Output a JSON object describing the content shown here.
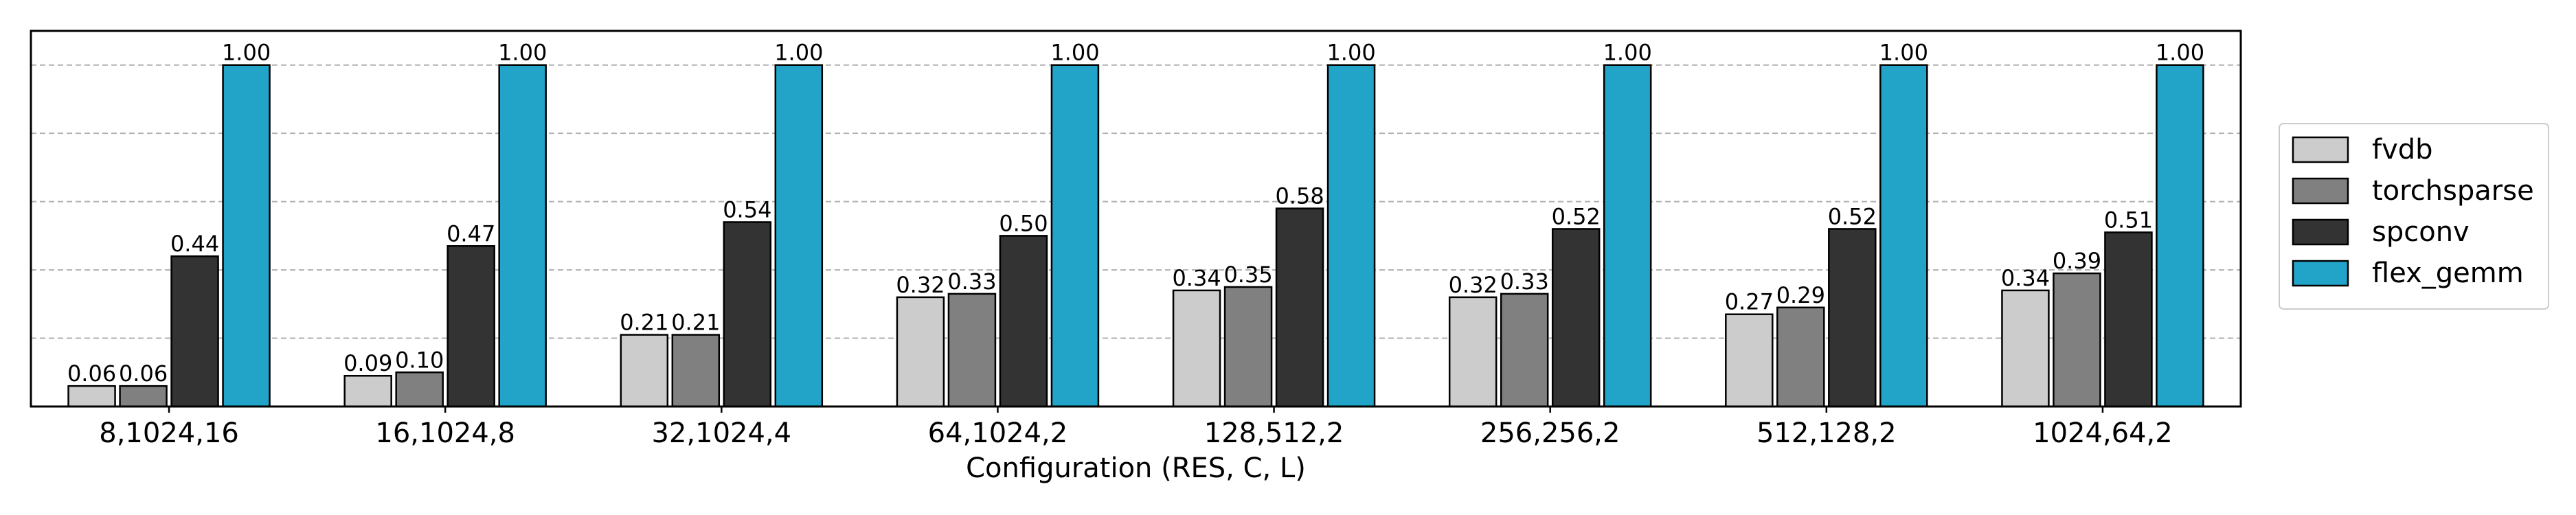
{
  "chart_data": {
    "type": "bar",
    "title": "",
    "xlabel": "Configuration (RES, C, L)",
    "ylabel": "",
    "ylim": [
      0,
      1.1
    ],
    "grid": "horizontal dashed",
    "legend_position": "right",
    "categories": [
      "8,1024,16",
      "16,1024,8",
      "32,1024,4",
      "64,1024,2",
      "128,512,2",
      "256,256,2",
      "512,128,2",
      "1024,64,2"
    ],
    "series": [
      {
        "name": "fvdb",
        "color": "#cccccc",
        "values": [
          0.06,
          0.09,
          0.21,
          0.32,
          0.34,
          0.32,
          0.27,
          0.34
        ],
        "labels": [
          "0.06",
          "0.09",
          "0.21",
          "0.32",
          "0.34",
          "0.32",
          "0.27",
          "0.34"
        ]
      },
      {
        "name": "torchsparse",
        "color": "#808080",
        "values": [
          0.06,
          0.1,
          0.21,
          0.33,
          0.35,
          0.33,
          0.29,
          0.39
        ],
        "labels": [
          "0.06",
          "0.10",
          "0.21",
          "0.33",
          "0.35",
          "0.33",
          "0.29",
          "0.39"
        ]
      },
      {
        "name": "spconv",
        "color": "#333333",
        "values": [
          0.44,
          0.47,
          0.54,
          0.5,
          0.58,
          0.52,
          0.52,
          0.51
        ],
        "labels": [
          "0.44",
          "0.47",
          "0.54",
          "0.50",
          "0.58",
          "0.52",
          "0.52",
          "0.51"
        ]
      },
      {
        "name": "flex_gemm",
        "color": "#22a3c8",
        "values": [
          1.0,
          1.0,
          1.0,
          1.0,
          1.0,
          1.0,
          1.0,
          1.0
        ],
        "labels": [
          "1.00",
          "1.00",
          "1.00",
          "1.00",
          "1.00",
          "1.00",
          "1.00",
          "1.00"
        ]
      }
    ],
    "gridlines": [
      0.2,
      0.4,
      0.6,
      0.8,
      1.0
    ]
  }
}
